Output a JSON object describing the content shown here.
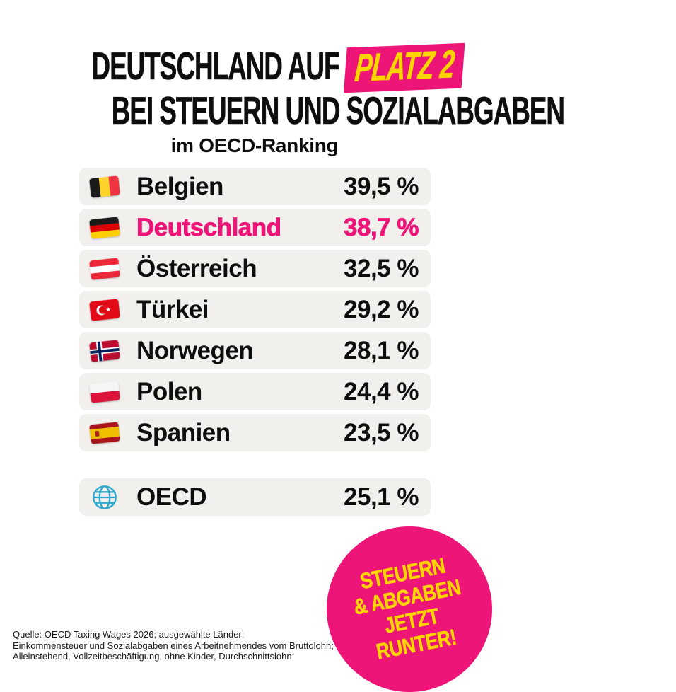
{
  "title": {
    "line1_prefix": "DEUTSCHLAND AUF",
    "badge": "PLATZ 2",
    "line2": "BEI STEUERN UND SOZIALABGABEN",
    "subtitle": "im OECD-Ranking"
  },
  "colors": {
    "accent_pink": "#EE1578",
    "accent_yellow": "#FFD400",
    "row_background": "#F2F0ED",
    "text_black": "#0E0E0E",
    "globe_blue": "#2FA8CE"
  },
  "ranking": {
    "rows": [
      {
        "country": "Belgien",
        "value": "39,5 %",
        "flag": "belgium",
        "highlight": false
      },
      {
        "country": "Deutschland",
        "value": "38,7 %",
        "flag": "germany",
        "highlight": true
      },
      {
        "country": "Österreich",
        "value": "32,5 %",
        "flag": "austria",
        "highlight": false
      },
      {
        "country": "Türkei",
        "value": "29,2 %",
        "flag": "turkey",
        "highlight": false
      },
      {
        "country": "Norwegen",
        "value": "28,1 %",
        "flag": "norway",
        "highlight": false
      },
      {
        "country": "Polen",
        "value": "24,4 %",
        "flag": "poland",
        "highlight": false
      },
      {
        "country": "Spanien",
        "value": "23,5 %",
        "flag": "spain",
        "highlight": false
      }
    ],
    "summary_row": {
      "country": "OECD",
      "value": "25,1 %",
      "flag": "globe",
      "highlight": false
    }
  },
  "sticker": {
    "lines": [
      "STEUERN",
      "& ABGABEN",
      "JETZT",
      "RUNTER!"
    ]
  },
  "source": {
    "lines": [
      "Quelle: OECD Taxing Wages 2026; ausgewählte Länder;",
      "Einkommensteuer und Sozialabgaben eines Arbeitnehmendes vom Bruttolohn;",
      "Alleinstehend, Vollzeitbeschäftigung, ohne Kinder, Durchschnittslohn;"
    ]
  },
  "chart_data": {
    "type": "table",
    "title": "Deutschland auf Platz 2 bei Steuern und Sozialabgaben im OECD-Ranking",
    "categories": [
      "Belgien",
      "Deutschland",
      "Österreich",
      "Türkei",
      "Norwegen",
      "Polen",
      "Spanien",
      "OECD"
    ],
    "values": [
      39.5,
      38.7,
      32.5,
      29.2,
      28.1,
      24.4,
      23.5,
      25.1
    ],
    "unit": "%",
    "highlighted_category": "Deutschland",
    "source": "OECD Taxing Wages 2026"
  }
}
